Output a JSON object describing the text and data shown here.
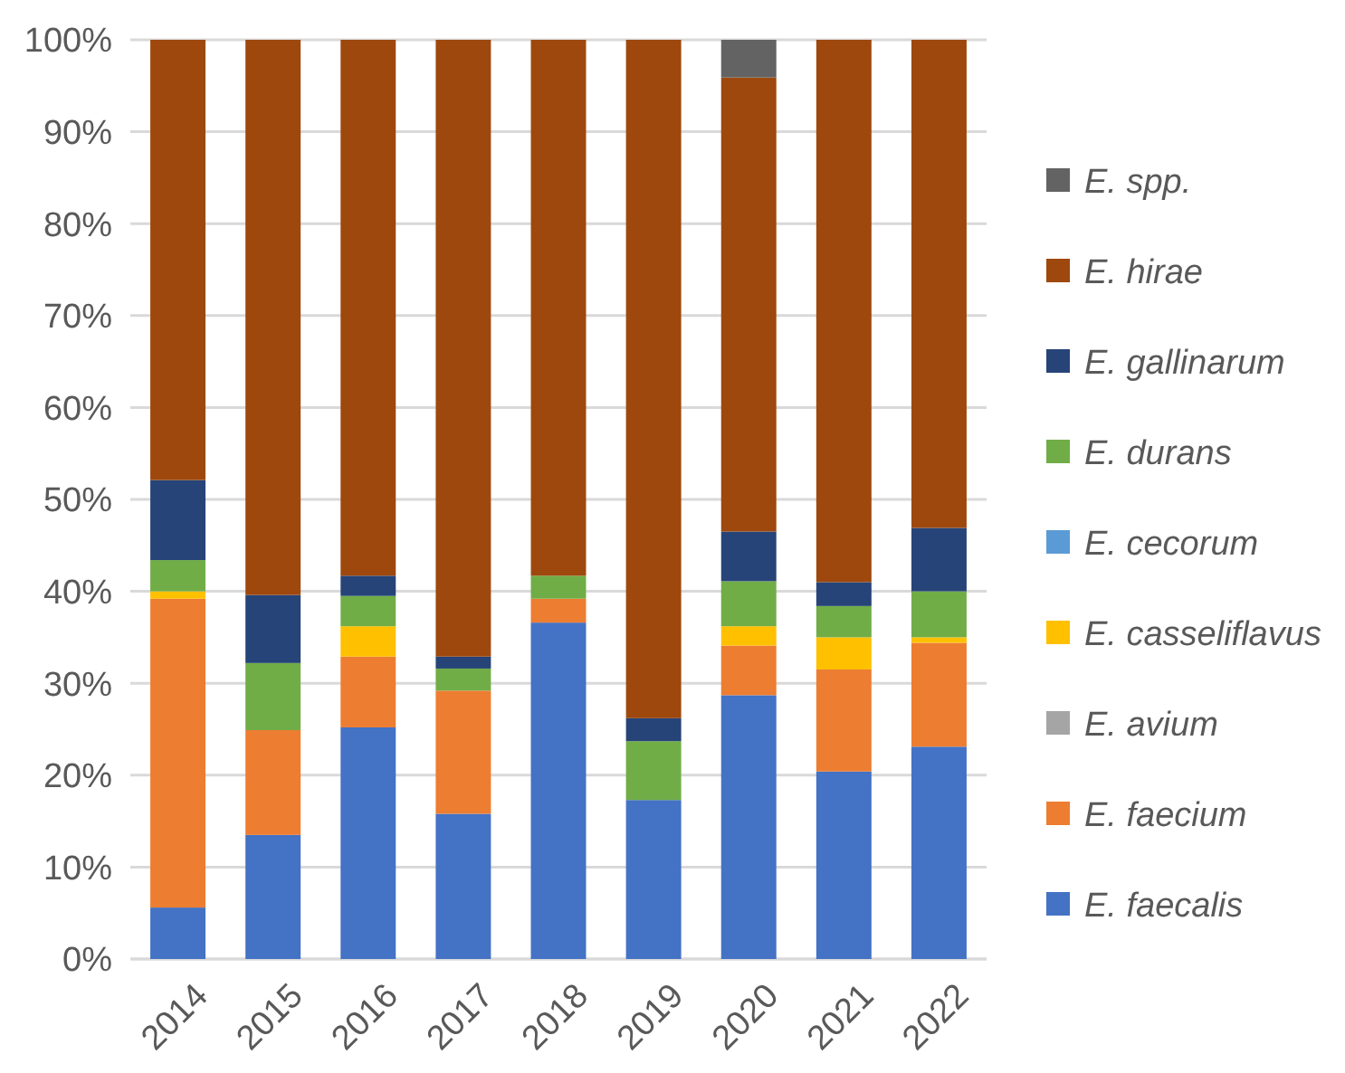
{
  "chart_data": {
    "type": "bar",
    "stacked": true,
    "categories": [
      "2014",
      "2015",
      "2016",
      "2017",
      "2018",
      "2019",
      "2020",
      "2021",
      "2022"
    ],
    "ylim": [
      0,
      1
    ],
    "yticks": [
      {
        "value": 0,
        "label": "0%"
      },
      {
        "value": 0.1,
        "label": "10%"
      },
      {
        "value": 0.2,
        "label": "20%"
      },
      {
        "value": 0.3,
        "label": "30%"
      },
      {
        "value": 0.4,
        "label": "40%"
      },
      {
        "value": 0.5,
        "label": "50%"
      },
      {
        "value": 0.6,
        "label": "60%"
      },
      {
        "value": 0.7,
        "label": "70%"
      },
      {
        "value": 0.8,
        "label": "80%"
      },
      {
        "value": 0.9,
        "label": "90%"
      },
      {
        "value": 1,
        "label": "100%"
      }
    ],
    "grid": "y",
    "legend": "right",
    "series": [
      {
        "name": "E. faecalis",
        "color": "#4472c4",
        "values": [
          0.056,
          0.135,
          0.252,
          0.158,
          0.366,
          0.173,
          0.287,
          0.204,
          0.231
        ]
      },
      {
        "name": "E. faecium",
        "color": "#ed7d31",
        "values": [
          0.336,
          0.114,
          0.077,
          0.134,
          0.026,
          0,
          0.054,
          0.111,
          0.113
        ]
      },
      {
        "name": "E. avium",
        "color": "#a5a5a5",
        "values": [
          0,
          0,
          0,
          0,
          0,
          0,
          0,
          0,
          0
        ]
      },
      {
        "name": "E. casseliflavus",
        "color": "#ffc000",
        "values": [
          0.008,
          0,
          0.033,
          0,
          0,
          0,
          0.021,
          0.035,
          0.006
        ]
      },
      {
        "name": "E. cecorum",
        "color": "#5b9bd5",
        "values": [
          0,
          0,
          0,
          0,
          0,
          0,
          0,
          0,
          0
        ]
      },
      {
        "name": "E. durans",
        "color": "#70ad47",
        "values": [
          0.034,
          0.073,
          0.033,
          0.024,
          0.025,
          0.064,
          0.049,
          0.034,
          0.05
        ]
      },
      {
        "name": "E. gallinarum",
        "color": "#264478",
        "values": [
          0.087,
          0.074,
          0.022,
          0.013,
          0,
          0.025,
          0.054,
          0.026,
          0.069
        ]
      },
      {
        "name": "E. hirae",
        "color": "#9e480e",
        "values": [
          0.479,
          0.604,
          0.583,
          0.671,
          0.583,
          0.738,
          0.494,
          0.59,
          0.531
        ]
      },
      {
        "name": "E. spp.",
        "color": "#636363",
        "values": [
          0,
          0,
          0,
          0,
          0,
          0,
          0.041,
          0,
          0
        ]
      }
    ]
  }
}
